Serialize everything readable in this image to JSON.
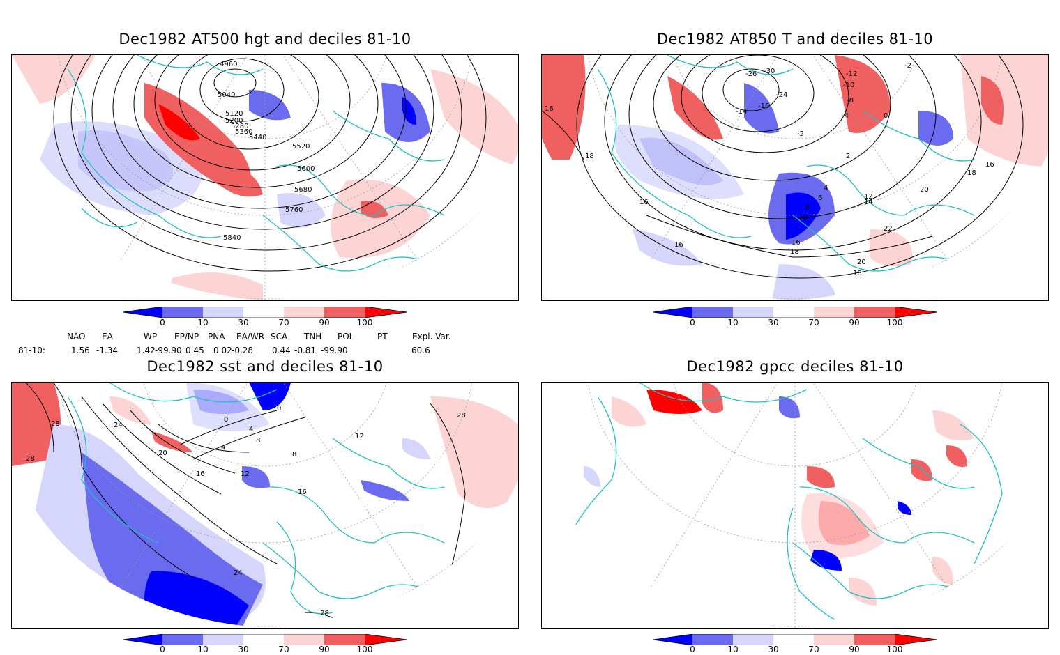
{
  "panels": [
    {
      "title": "Dec1982 AT500 hgt and deciles 81-10",
      "contours": [
        "4960",
        "5040",
        "5120",
        "5200",
        "5280",
        "5360",
        "5440",
        "5520",
        "5600",
        "5680",
        "5760",
        "5840"
      ]
    },
    {
      "title": "Dec1982 AT850 T and deciles 81-10",
      "contours": [
        "-26",
        "-30",
        "-12",
        "-10",
        "-2",
        "-14",
        "-16",
        "-24",
        "-8",
        "-4",
        "0",
        "-2",
        "2",
        "16",
        "18",
        "16",
        "18",
        "16",
        "4",
        "6",
        "8",
        "10",
        "12",
        "14",
        "16",
        "20",
        "22",
        "16",
        "18",
        "20",
        "18",
        "16"
      ]
    },
    {
      "title": "Dec1982 sst and deciles 81-10",
      "contours": [
        "28",
        "24",
        "28",
        "0",
        "0",
        "4",
        "8",
        "4",
        "8",
        "20",
        "16",
        "12",
        "16",
        "12",
        "24",
        "28",
        "28"
      ]
    },
    {
      "title": "Dec1982 gpcc deciles 81-10",
      "contours": []
    }
  ],
  "colorbar": {
    "ticks": [
      "0",
      "10",
      "30",
      "70",
      "90",
      "100"
    ],
    "colors": {
      "deep_blue": "#0000ff",
      "mid_blue": "#6b6bf0",
      "light_blue": "#d6d6fc",
      "white": "#ffffff",
      "light_red": "#fcd4d4",
      "mid_red": "#f06060",
      "deep_red": "#ff0000"
    }
  },
  "indices": {
    "headers": [
      "NAO",
      "EA",
      "WP",
      "EP/NP",
      "PNA",
      "EA/WR",
      "SCA",
      "TNH",
      "POL",
      "PT",
      "Expl. Var."
    ],
    "row_label": "81-10:",
    "values": [
      "1.56",
      "-1.34",
      "1.42",
      "-99.90",
      "0.45",
      "0.02",
      "-0.28",
      "0.44",
      "-0.81",
      "-99.90",
      "60.6"
    ]
  },
  "map_colors": {
    "coast": "#20c0c0",
    "grid": "#999999",
    "contour": "#000000"
  }
}
